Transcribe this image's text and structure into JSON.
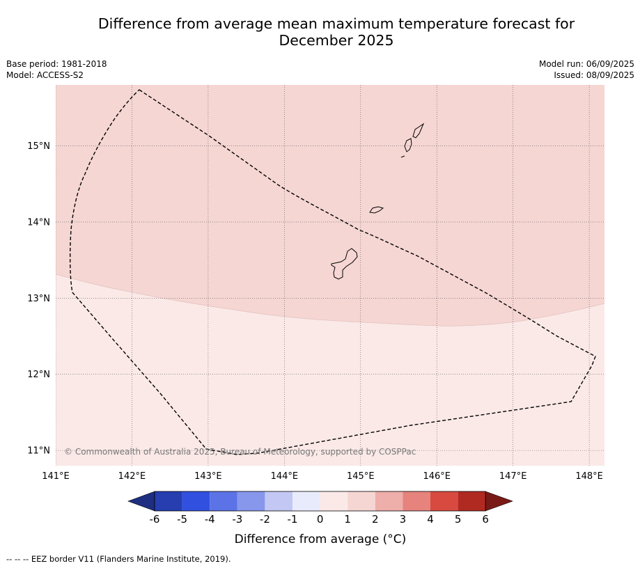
{
  "title": "Difference from average mean maximum temperature forecast for December 2025",
  "title_lines": [
    "Difference from average mean maximum temperature forecast for",
    "December 2025"
  ],
  "meta_left": [
    "Base period: 1981-2018",
    "Model: ACCESS-S2"
  ],
  "meta_right": [
    "Model run: 06/09/2025",
    "Issued: 08/09/2025"
  ],
  "map": {
    "lon_range": [
      141.0,
      148.2
    ],
    "lat_range": [
      10.8,
      15.8
    ],
    "lon_ticks": [
      "141°E",
      "142°E",
      "143°E",
      "144°E",
      "145°E",
      "146°E",
      "147°E",
      "148°E"
    ],
    "lat_ticks": [
      "15°N",
      "14°N",
      "13°N",
      "12°N",
      "11°N"
    ],
    "grid": true,
    "zones": [
      {
        "category": "1 to 2",
        "color": "#f5d6d3",
        "location": "northern part of map"
      },
      {
        "category": "0 to 1",
        "color": "#fae9e7",
        "location": "southern part of map"
      }
    ],
    "copyright": "© Commonwealth of Australia 2025, Bureau of Meteorology, supported by COSPPac"
  },
  "colorbar": {
    "labels": [
      "-6",
      "-5",
      "-4",
      "-3",
      "-2",
      "-1",
      "0",
      "1",
      "2",
      "3",
      "4",
      "5",
      "6"
    ],
    "colors": [
      "#233797",
      "#263eb0",
      "#3150e0",
      "#5b73e6",
      "#8697ec",
      "#c2c8f3",
      "#e8ebfb",
      "#fae9e7",
      "#f5d6d3",
      "#eeaea9",
      "#e6837d",
      "#d84a40",
      "#b02a22"
    ],
    "under_color": "#1e2e80",
    "over_color": "#7a1a16",
    "title": "Difference from average (°C)"
  },
  "footnote": "--  --  -- EEZ border V11 (Flanders Marine Institute, 2019)."
}
